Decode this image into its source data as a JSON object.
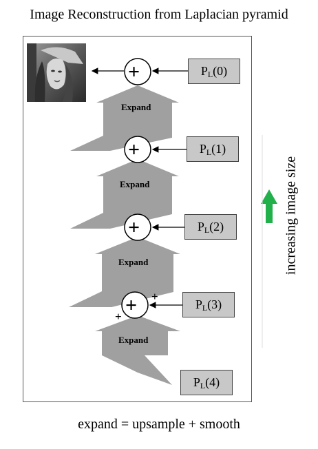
{
  "title": "Image Reconstruction from Laplacian pyramid",
  "pyramid_levels": [
    {
      "prefix": "P",
      "sub": "L",
      "arg": "(0)"
    },
    {
      "prefix": "P",
      "sub": "L",
      "arg": "(1)"
    },
    {
      "prefix": "P",
      "sub": "L",
      "arg": "(2)"
    },
    {
      "prefix": "P",
      "sub": "L",
      "arg": "(3)"
    },
    {
      "prefix": "P",
      "sub": "L",
      "arg": "(4)"
    }
  ],
  "expand_label": "Expand",
  "adder_symbol": "+",
  "input_signs": [
    "+",
    "+"
  ],
  "side_label": "increasing image size",
  "footer": "expand = upsample + smooth",
  "colors": {
    "box_fill": "#c8c8c8",
    "arrow_fill": "#a0a0a0",
    "up_arrow": "#22b04b"
  }
}
